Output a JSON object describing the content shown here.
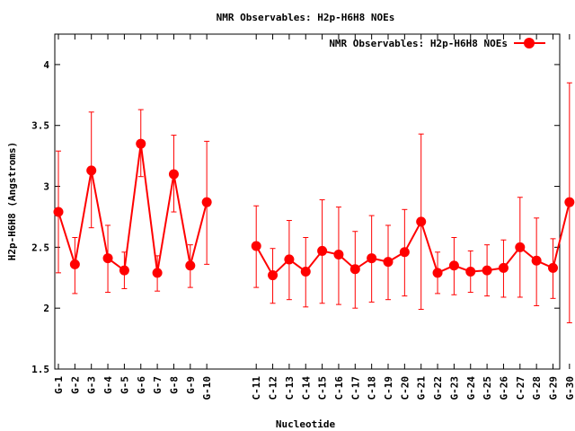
{
  "chart_data": {
    "type": "line",
    "title": "NMR Observables: H2p-H6H8 NOEs",
    "xlabel": "Nucleotide",
    "ylabel": "H2p-H6H8 (Angstroms)",
    "ylim": [
      1.5,
      4.25
    ],
    "yticks": [
      "1.5",
      "2",
      "2.5",
      "3",
      "3.5",
      "4"
    ],
    "grid": false,
    "legend_position": "top-right",
    "series": [
      {
        "name": "NMR Observables: H2p-H6H8 NOEs",
        "color": "#ff0000",
        "segments": [
          {
            "categories": [
              "G-1",
              "G-2",
              "G-3",
              "G-4",
              "G-5",
              "G-6",
              "G-7",
              "G-8",
              "G-9",
              "G-10"
            ],
            "values": [
              2.79,
              2.36,
              3.13,
              2.41,
              2.31,
              3.35,
              2.29,
              3.1,
              2.35,
              2.87
            ],
            "error_low": [
              2.29,
              2.12,
              2.66,
              2.13,
              2.16,
              3.08,
              2.14,
              2.79,
              2.17,
              2.36
            ],
            "error_high": [
              3.29,
              2.58,
              3.61,
              2.68,
              2.46,
              3.63,
              2.43,
              3.42,
              2.52,
              3.37
            ]
          },
          {
            "categories": [
              "C-11",
              "C-12",
              "C-13",
              "C-14",
              "C-15",
              "C-16",
              "C-17",
              "C-18",
              "C-19",
              "C-20",
              "G-21",
              "G-22",
              "G-23",
              "G-24",
              "G-25",
              "G-26",
              "C-27",
              "G-28",
              "G-29",
              "G-30"
            ],
            "values": [
              2.51,
              2.27,
              2.4,
              2.3,
              2.47,
              2.44,
              2.32,
              2.41,
              2.38,
              2.46,
              2.71,
              2.29,
              2.35,
              2.3,
              2.31,
              2.33,
              2.5,
              2.39,
              2.33,
              2.87
            ],
            "error_low": [
              2.17,
              2.04,
              2.07,
              2.01,
              2.04,
              2.03,
              2.0,
              2.05,
              2.07,
              2.1,
              1.99,
              2.12,
              2.11,
              2.13,
              2.1,
              2.09,
              2.09,
              2.02,
              2.08,
              1.88
            ],
            "error_high": [
              2.84,
              2.49,
              2.72,
              2.58,
              2.89,
              2.83,
              2.63,
              2.76,
              2.68,
              2.81,
              3.43,
              2.46,
              2.58,
              2.47,
              2.52,
              2.56,
              2.91,
              2.74,
              2.57,
              3.85
            ]
          }
        ]
      }
    ]
  }
}
